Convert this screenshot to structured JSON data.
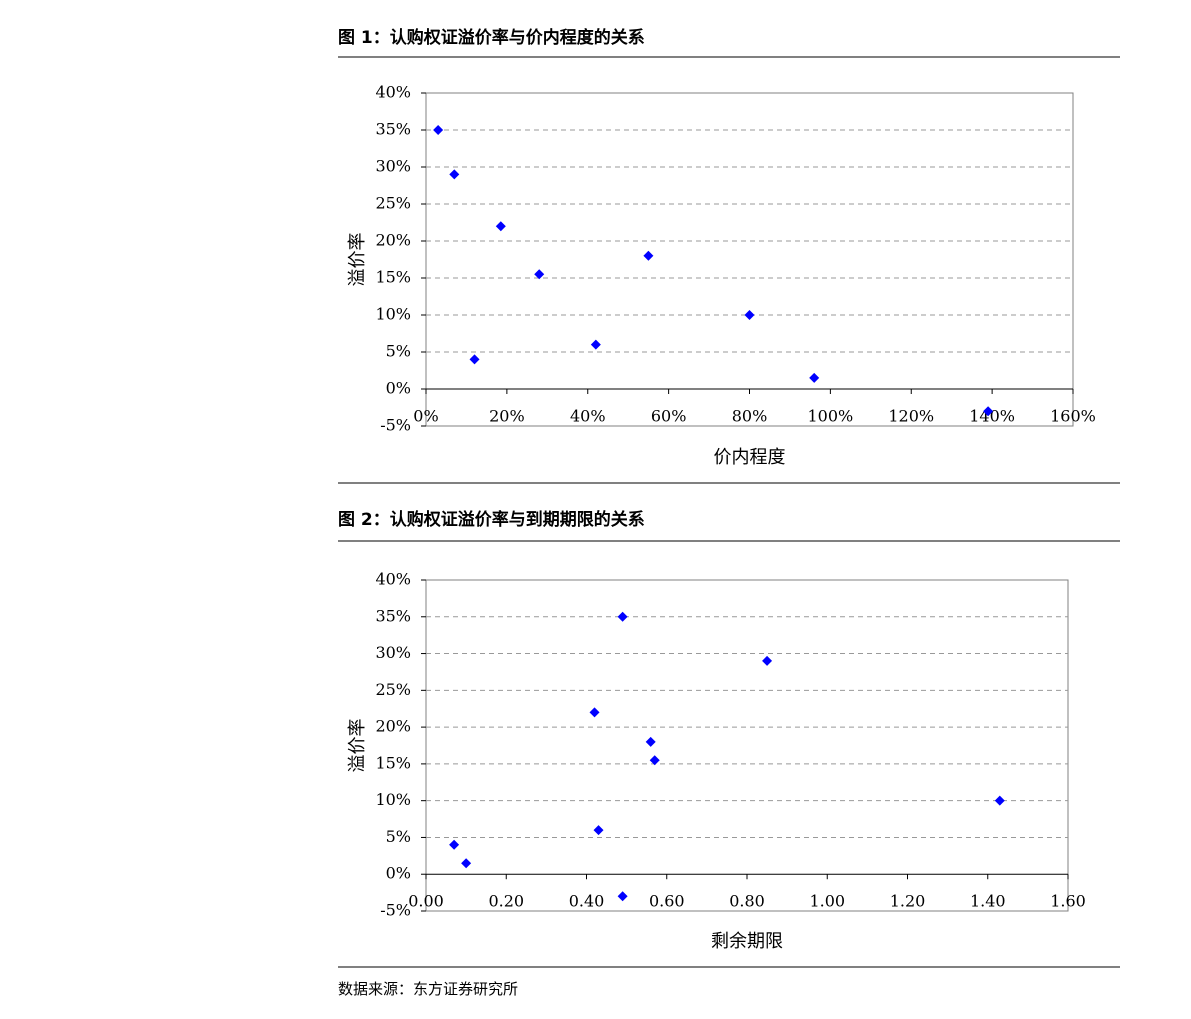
{
  "chart_data": [
    {
      "type": "scatter",
      "title": "图 1：认购权证溢价率与价内程度的关系",
      "x_label": "价内程度",
      "y_label": "溢价率",
      "color": "#0000ff",
      "grid": true,
      "x": [
        3,
        7,
        12,
        18.5,
        28,
        42,
        55,
        80,
        96,
        139
      ],
      "values": [
        35,
        29,
        4,
        22,
        15.5,
        6,
        18,
        10,
        1.5,
        -3
      ],
      "xlim": [
        0,
        160
      ],
      "xticks": [
        {
          "value": 0,
          "label": "0%"
        },
        {
          "value": 20,
          "label": "20%"
        },
        {
          "value": 40,
          "label": "40%"
        },
        {
          "value": 60,
          "label": "60%"
        },
        {
          "value": 80,
          "label": "80%"
        },
        {
          "value": 100,
          "label": "100%"
        },
        {
          "value": 120,
          "label": "120%"
        },
        {
          "value": 140,
          "label": "140%"
        },
        {
          "value": 160,
          "label": "160%"
        }
      ],
      "ylim": [
        -5,
        40
      ],
      "yticks": [
        {
          "value": -5,
          "label": "-5%"
        },
        {
          "value": 0,
          "label": "0%"
        },
        {
          "value": 5,
          "label": "5%"
        },
        {
          "value": 10,
          "label": "10%"
        },
        {
          "value": 15,
          "label": "15%"
        },
        {
          "value": 20,
          "label": "20%"
        },
        {
          "value": 25,
          "label": "25%"
        },
        {
          "value": 30,
          "label": "30%"
        },
        {
          "value": 35,
          "label": "35%"
        },
        {
          "value": 40,
          "label": "40%"
        }
      ]
    },
    {
      "type": "scatter",
      "title": "图 2：认购权证溢价率与到期期限的关系",
      "x_label": "剩余期限",
      "y_label": "溢价率",
      "color": "#0000ff",
      "grid": true,
      "x": [
        0.07,
        0.1,
        0.42,
        0.43,
        0.49,
        0.49,
        0.56,
        0.57,
        0.85,
        1.43
      ],
      "values": [
        4,
        1.5,
        22,
        6,
        35,
        -3,
        18,
        15.5,
        29,
        10
      ],
      "xlim": [
        0,
        1.6
      ],
      "xticks": [
        {
          "value": 0,
          "label": "0.00"
        },
        {
          "value": 0.2,
          "label": "0.20"
        },
        {
          "value": 0.4,
          "label": "0.40"
        },
        {
          "value": 0.6,
          "label": "0.60"
        },
        {
          "value": 0.8,
          "label": "0.80"
        },
        {
          "value": 1.0,
          "label": "1.00"
        },
        {
          "value": 1.2,
          "label": "1.20"
        },
        {
          "value": 1.4,
          "label": "1.40"
        },
        {
          "value": 1.6,
          "label": "1.60"
        }
      ],
      "ylim": [
        -5,
        40
      ],
      "yticks": [
        {
          "value": -5,
          "label": "-5%"
        },
        {
          "value": 0,
          "label": "0%"
        },
        {
          "value": 5,
          "label": "5%"
        },
        {
          "value": 10,
          "label": "10%"
        },
        {
          "value": 15,
          "label": "15%"
        },
        {
          "value": 20,
          "label": "20%"
        },
        {
          "value": 25,
          "label": "25%"
        },
        {
          "value": 30,
          "label": "30%"
        },
        {
          "value": 35,
          "label": "35%"
        },
        {
          "value": 40,
          "label": "40%"
        }
      ]
    }
  ],
  "source": "数据来源：东方证券研究所"
}
